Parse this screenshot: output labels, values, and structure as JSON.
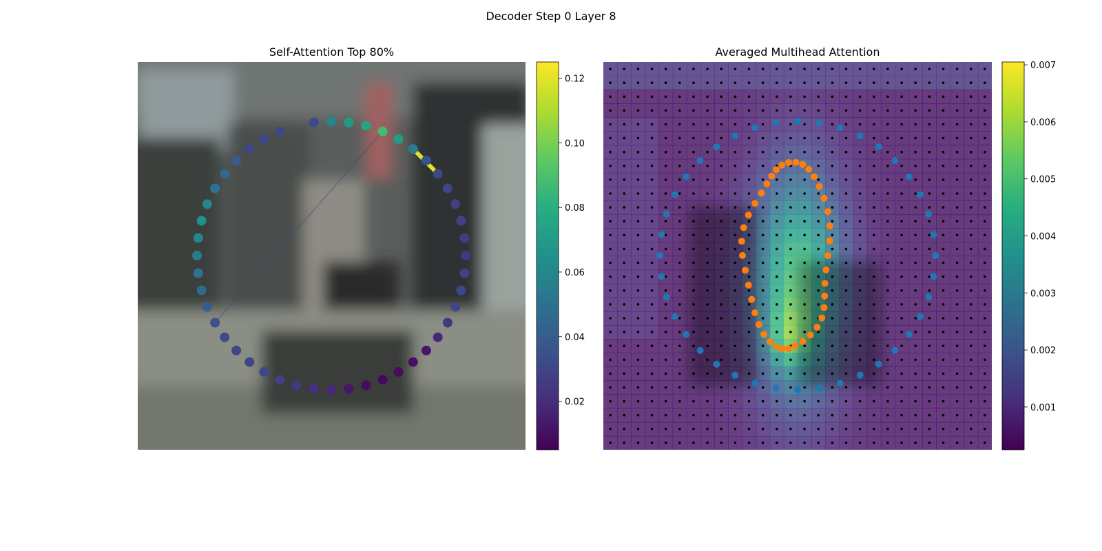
{
  "figure": {
    "suptitle": "Decoder Step 0 Layer 8"
  },
  "chart_data": [
    {
      "type": "scatter",
      "title": "Self-Attention Top 80%",
      "colorbar": {
        "cmap": "viridis",
        "range": [
          0.005,
          0.125
        ],
        "ticks": [
          0.02,
          0.04,
          0.06,
          0.08,
          0.1,
          0.12
        ],
        "tick_labels": [
          "0.02",
          "0.04",
          "0.06",
          "0.08",
          "0.10",
          "0.12"
        ]
      },
      "points": {
        "angles_deg": [
          0,
          7.5,
          15,
          22.5,
          30,
          37.5,
          45,
          52.5,
          60,
          67.5,
          75,
          82.5,
          90,
          97.5,
          105,
          112.5,
          120,
          127.5,
          135,
          142.5,
          150,
          157.5,
          165,
          172.5,
          180,
          187.5,
          195,
          202.5,
          210,
          217.5,
          225,
          232.5,
          240,
          247.5,
          255,
          262.5,
          270,
          277.5,
          285,
          292.5,
          300,
          307.5,
          315,
          322.5,
          330,
          337.5,
          352.5
        ],
        "values": [
          0.06,
          0.07,
          0.075,
          0.088,
          0.07,
          0.055,
          0.035,
          0.03,
          0.03,
          0.028,
          0.028,
          0.027,
          0.025,
          0.028,
          0.03,
          0.03,
          0.025,
          0.018,
          0.012,
          0.01,
          0.009,
          0.008,
          0.009,
          0.012,
          0.018,
          0.022,
          0.025,
          0.028,
          0.03,
          0.03,
          0.03,
          0.032,
          0.035,
          0.04,
          0.045,
          0.05,
          0.055,
          0.06,
          0.065,
          0.06,
          0.05,
          0.045,
          0.04,
          0.03,
          0.03,
          0.03,
          0.032
        ]
      },
      "attention_lines": [
        {
          "from_deg": 52.5,
          "to_deg": 37.5,
          "value": 0.12
        },
        {
          "from_deg": 22.5,
          "to_deg": 240,
          "value": 0.03
        }
      ],
      "background": "blurred street scene (cars, pedestrian)"
    },
    {
      "type": "heatmap",
      "title": "Averaged Multihead Attention",
      "colorbar": {
        "cmap": "viridis",
        "range": [
          0.00025,
          0.00705
        ],
        "ticks": [
          0.001,
          0.002,
          0.003,
          0.004,
          0.005,
          0.006,
          0.007
        ],
        "tick_labels": [
          "0.001",
          "0.002",
          "0.003",
          "0.004",
          "0.005",
          "0.006",
          "0.007"
        ]
      },
      "grid": {
        "rows": 28,
        "cols": 28
      },
      "series": [
        {
          "color": "#1f77b4",
          "shape": "outer ring of 40 points"
        },
        {
          "color": "#ff7f0e",
          "shape": "inner elongated contour of 40 points"
        }
      ]
    }
  ]
}
